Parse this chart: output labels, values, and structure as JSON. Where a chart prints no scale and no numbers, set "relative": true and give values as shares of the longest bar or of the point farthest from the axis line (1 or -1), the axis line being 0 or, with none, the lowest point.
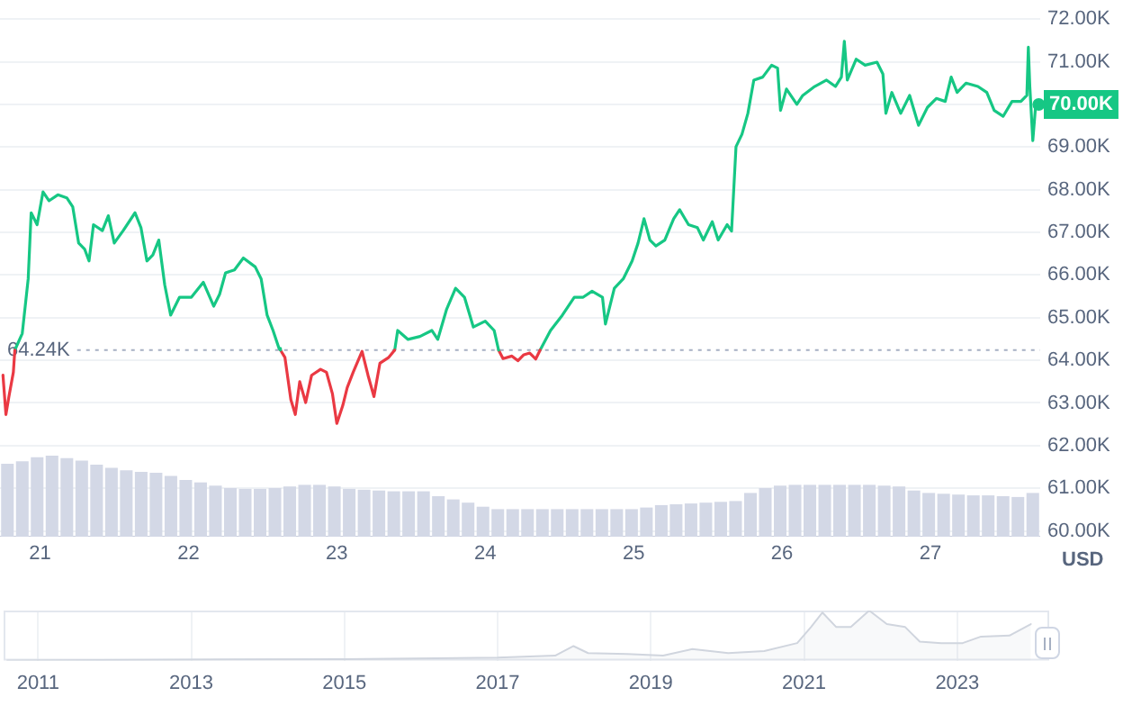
{
  "chart_data": [
    {
      "type": "line",
      "xlim": [
        20.73,
        27.74
      ],
      "xticks": [
        21,
        22,
        23,
        24,
        25,
        26,
        27
      ],
      "ylim": [
        60,
        72
      ],
      "yticks": [
        {
          "value": 60,
          "label": "60.00K"
        },
        {
          "value": 61,
          "label": "61.00K"
        },
        {
          "value": 62,
          "label": "62.00K"
        },
        {
          "value": 63,
          "label": "63.00K"
        },
        {
          "value": 64,
          "label": "64.00K"
        },
        {
          "value": 65,
          "label": "65.00K"
        },
        {
          "value": 66,
          "label": "66.00K"
        },
        {
          "value": 67,
          "label": "67.00K"
        },
        {
          "value": 68,
          "label": "68.00K"
        },
        {
          "value": 69,
          "label": "69.00K"
        },
        {
          "value": 70,
          "label": null
        },
        {
          "value": 71,
          "label": "71.00K"
        },
        {
          "value": 72,
          "label": "72.00K"
        }
      ],
      "ylabel": "USD",
      "grid": "y",
      "ref_lines": [
        {
          "axis": "y",
          "value": 64.24,
          "label": "64.24K",
          "color": "#a6b0c3",
          "line_style": "dotted"
        }
      ],
      "annotations": [
        {
          "text": "70.00K",
          "x": 27.73,
          "y": 70
        }
      ],
      "series": [
        {
          "type": "line",
          "color": "#ea3943",
          "x": [
            20.75,
            20.77,
            20.79,
            20.82,
            20.83
          ],
          "values": [
            63.65,
            62.73,
            63.15,
            63.72,
            64.24
          ]
        },
        {
          "type": "line",
          "color": "#16c784",
          "x": [
            20.83,
            20.88,
            20.92,
            20.94,
            20.98,
            21.02,
            21.06,
            21.12,
            21.18,
            21.22,
            21.26,
            21.3,
            21.33,
            21.36,
            21.42,
            21.46,
            21.5,
            21.56,
            21.64,
            21.68,
            21.72,
            21.76,
            21.8,
            21.84,
            21.88,
            21.94,
            22.02,
            22.1,
            22.17,
            22.21,
            22.25,
            22.31,
            22.37,
            22.45,
            22.49,
            22.53,
            22.57,
            22.61,
            22.62
          ],
          "values": [
            64.24,
            64.63,
            65.91,
            67.46,
            67.18,
            67.95,
            67.74,
            67.88,
            67.81,
            67.6,
            66.75,
            66.61,
            66.33,
            67.18,
            67.04,
            67.39,
            66.75,
            67.04,
            67.46,
            67.11,
            66.33,
            66.47,
            66.82,
            65.77,
            65.06,
            65.48,
            65.48,
            65.83,
            65.27,
            65.55,
            66.05,
            66.12,
            66.4,
            66.19,
            65.91,
            65.06,
            64.7,
            64.28,
            64.24
          ]
        },
        {
          "type": "line",
          "color": "#ea3943",
          "x": [
            22.62,
            22.65,
            22.69,
            22.72,
            22.75,
            22.79,
            22.83,
            22.89,
            22.93,
            22.97,
            23.0,
            23.04,
            23.07,
            23.11,
            23.17,
            23.21,
            23.25,
            23.29,
            23.35,
            23.39
          ],
          "values": [
            64.24,
            64.07,
            63.08,
            62.73,
            63.5,
            63.01,
            63.65,
            63.79,
            63.72,
            63.22,
            62.52,
            62.94,
            63.36,
            63.72,
            64.21,
            63.65,
            63.15,
            63.93,
            64.07,
            64.24
          ]
        },
        {
          "type": "line",
          "color": "#16c784",
          "x": [
            23.39,
            23.41,
            23.48,
            23.56,
            23.64,
            23.68,
            23.74,
            23.8,
            23.86,
            23.92,
            24.0,
            24.06,
            24.09
          ],
          "values": [
            64.24,
            64.7,
            64.49,
            64.56,
            64.7,
            64.49,
            65.2,
            65.69,
            65.48,
            64.78,
            64.92,
            64.7,
            64.24
          ]
        },
        {
          "type": "line",
          "color": "#ea3943",
          "x": [
            24.09,
            24.12,
            24.18,
            24.22,
            24.26,
            24.3,
            24.34,
            24.37
          ],
          "values": [
            64.24,
            64.04,
            64.1,
            63.99,
            64.13,
            64.17,
            64.03,
            64.24
          ]
        },
        {
          "type": "line",
          "color": "#16c784",
          "x": [
            24.37,
            24.44,
            24.52,
            24.6,
            24.66,
            24.72,
            24.79,
            24.81,
            24.87,
            24.93,
            24.99,
            25.03,
            25.07,
            25.11,
            25.15,
            25.21,
            25.27,
            25.31,
            25.37,
            25.43,
            25.47,
            25.53,
            25.57,
            25.63,
            25.66,
            25.69,
            25.73,
            25.77,
            25.81,
            25.87,
            25.93,
            25.97,
            25.99,
            26.03,
            26.1,
            26.14,
            26.22,
            26.3,
            26.36,
            26.4,
            26.42,
            26.44,
            26.5,
            26.56,
            26.64,
            26.68,
            26.7,
            26.74,
            26.8,
            26.86,
            26.92,
            26.98,
            27.04,
            27.1,
            27.14,
            27.18,
            27.24,
            27.32,
            27.38,
            27.43,
            27.49,
            27.55,
            27.61,
            27.65,
            27.66,
            27.67,
            27.69,
            27.71,
            27.73
          ],
          "values": [
            64.24,
            64.7,
            65.06,
            65.48,
            65.48,
            65.62,
            65.48,
            64.85,
            65.69,
            65.91,
            66.33,
            66.75,
            67.32,
            66.82,
            66.68,
            66.82,
            67.32,
            67.53,
            67.18,
            67.11,
            66.82,
            67.25,
            66.82,
            67.18,
            67.03,
            69.01,
            69.3,
            69.79,
            70.57,
            70.64,
            70.92,
            70.85,
            69.86,
            70.36,
            70.0,
            70.21,
            70.42,
            70.57,
            70.42,
            70.64,
            71.48,
            70.57,
            71.06,
            70.92,
            70.99,
            70.71,
            69.79,
            70.28,
            69.79,
            70.21,
            69.51,
            69.93,
            70.14,
            70.07,
            70.64,
            70.28,
            70.5,
            70.42,
            70.28,
            69.86,
            69.72,
            70.07,
            70.07,
            70.21,
            71.34,
            70.42,
            69.15,
            70.0,
            70.0
          ]
        }
      ]
    },
    {
      "type": "bar",
      "relative": true,
      "color": "#d3d8e6",
      "categories": [
        null,
        null,
        null,
        null,
        null,
        null,
        null,
        null,
        null,
        null,
        null,
        null,
        null,
        null,
        null,
        null,
        null,
        null,
        null,
        null,
        null,
        null,
        null,
        null,
        null,
        null,
        null,
        null,
        null,
        null,
        null,
        null,
        null,
        null,
        null,
        null,
        null,
        null,
        null,
        null,
        null,
        null,
        null,
        null,
        null,
        null,
        null,
        null,
        null,
        null,
        null,
        null,
        null,
        null,
        null,
        null,
        null,
        null,
        null,
        null,
        null,
        null,
        null,
        null,
        null,
        null,
        null,
        null,
        null,
        null
      ],
      "values": [
        0.9,
        0.93,
        0.98,
        1,
        0.97,
        0.94,
        0.89,
        0.85,
        0.82,
        0.8,
        0.79,
        0.75,
        0.7,
        0.67,
        0.63,
        0.6,
        0.59,
        0.59,
        0.6,
        0.62,
        0.64,
        0.64,
        0.62,
        0.59,
        0.58,
        0.57,
        0.56,
        0.56,
        0.56,
        0.5,
        0.46,
        0.42,
        0.37,
        0.34,
        0.34,
        0.34,
        0.34,
        0.34,
        0.34,
        0.34,
        0.34,
        0.34,
        0.34,
        0.36,
        0.39,
        0.4,
        0.41,
        0.42,
        0.43,
        0.44,
        0.54,
        0.6,
        0.63,
        0.64,
        0.64,
        0.64,
        0.64,
        0.64,
        0.64,
        0.63,
        0.62,
        0.57,
        0.54,
        0.53,
        0.52,
        0.51,
        0.51,
        0.5,
        0.49,
        0.54
      ]
    },
    {
      "type": "area",
      "relative": true,
      "color": "#d0d5de",
      "xlim": [
        2010.55,
        2024.2
      ],
      "xticks": [
        2011,
        2013,
        2015,
        2017,
        2019,
        2021,
        2023
      ],
      "tick_labels": "x",
      "grid": "x",
      "x": [
        2010.6,
        2013,
        2015,
        2017,
        2017.75,
        2017.99,
        2018.18,
        2018.69,
        2019.16,
        2019.54,
        2020.01,
        2020.48,
        2020.91,
        2021.09,
        2021.24,
        2021.42,
        2021.61,
        2021.85,
        2022.08,
        2022.32,
        2022.51,
        2022.79,
        2023.07,
        2023.31,
        2023.68,
        2023.96
      ],
      "values": [
        0,
        0.02,
        0.03,
        0.06,
        0.1,
        0.29,
        0.15,
        0.13,
        0.1,
        0.23,
        0.15,
        0.19,
        0.35,
        0.67,
        0.96,
        0.67,
        0.67,
        1,
        0.73,
        0.67,
        0.38,
        0.35,
        0.35,
        0.48,
        0.5,
        0.73
      ]
    }
  ]
}
